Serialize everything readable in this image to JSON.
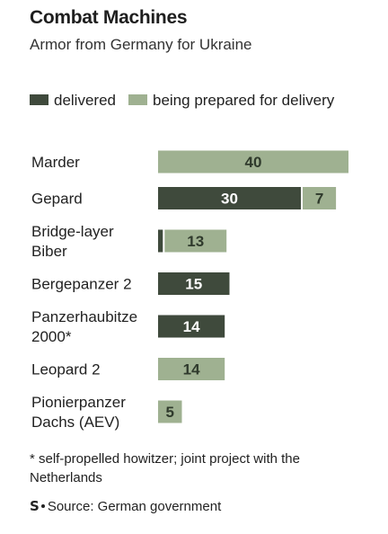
{
  "title": "Combat Machines",
  "subtitle": "Armor from Germany for Ukraine",
  "footnote": "* self-propelled howitzer; joint project with the Netherlands",
  "source": "Source: German government",
  "logo_text": "S",
  "colors": {
    "delivered": "#3f4a3c",
    "prepared": "#9fb191",
    "delivered_text": "#ffffff",
    "prepared_text": "#2f3a2c"
  },
  "chart_data": {
    "type": "bar",
    "orientation": "horizontal",
    "stacked": true,
    "categories": [
      [
        "Marder"
      ],
      [
        "Gepard"
      ],
      [
        "Bridge-layer",
        "Biber"
      ],
      [
        "Bergepanzer 2"
      ],
      [
        "Panzerhaubitze",
        "2000*"
      ],
      [
        "Leopard 2"
      ],
      [
        "Pionierpanzer",
        "Dachs (AEV)"
      ]
    ],
    "series": [
      {
        "name": "delivered",
        "values": [
          0,
          30,
          1,
          15,
          14,
          0,
          0
        ]
      },
      {
        "name": "being prepared for delivery",
        "values": [
          40,
          7,
          13,
          0,
          0,
          14,
          5
        ]
      }
    ],
    "data_labels": [
      [
        null,
        "30",
        null,
        "15",
        "14",
        null,
        null
      ],
      [
        "40",
        "7",
        "13",
        null,
        null,
        "14",
        "5"
      ]
    ],
    "legend": "top",
    "grid": false
  }
}
